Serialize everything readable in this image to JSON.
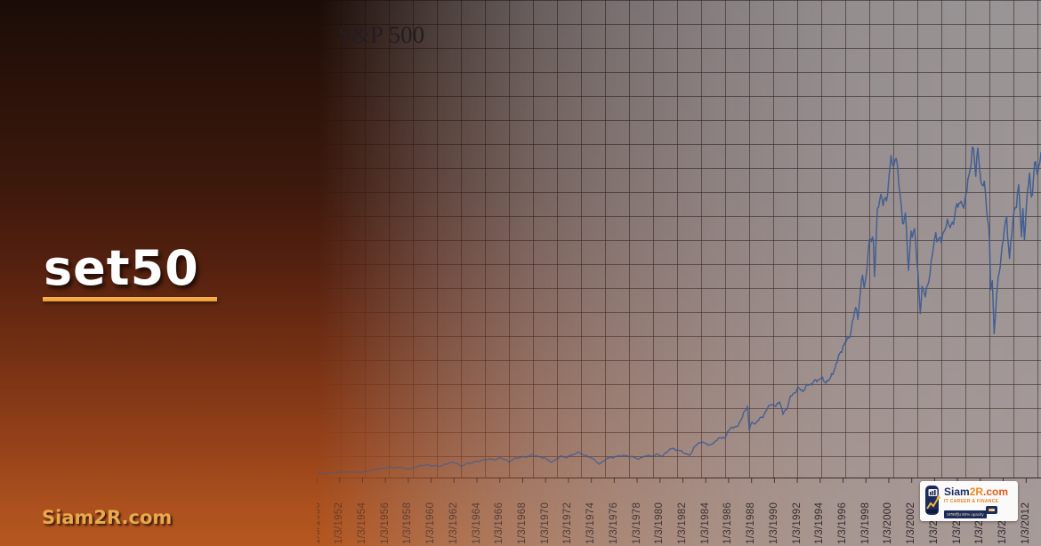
{
  "slide": {
    "title": "set50",
    "footer": "Siam2R.com"
  },
  "colors": {
    "background_top": "#1b0c07",
    "background_bottom": "#b5571f",
    "title_text": "#fdfdfd",
    "accent_underline": "#f2a23e",
    "footer_text": "#e9a94f",
    "chart_background": "#a5a0a2",
    "chart_grid": "#2a2226",
    "series_line": "#3d5c92",
    "logo_navy": "#1c2b5e",
    "logo_orange": "#ef8a1f"
  },
  "logo": {
    "brand_siam": "Siam",
    "brand_2r": "2R",
    "brand_com": ".com",
    "tagline": "IT CAREER & FINANCE",
    "strip_text": "เทรดหุ้น 80% opacity"
  },
  "chart_data": {
    "type": "line",
    "title": "S&P 500",
    "legend": "none",
    "grid": true,
    "xlabel": "",
    "ylabel": "",
    "xlim": [
      1950,
      2013.3
    ],
    "ylim": [
      0,
      2235
    ],
    "x_tick_labels": [
      "1/3/1950",
      "1/3/1952",
      "1/3/1954",
      "1/3/1956",
      "1/3/1958",
      "1/3/1960",
      "1/3/1962",
      "1/3/1964",
      "1/3/1966",
      "1/3/1968",
      "1/3/1970",
      "1/3/1972",
      "1/3/1974",
      "1/3/1976",
      "1/3/1978",
      "1/3/1980",
      "1/3/1982",
      "1/3/1984",
      "1/3/1986",
      "1/3/1988",
      "1/3/1990",
      "1/3/1992",
      "1/3/1994",
      "1/3/1996",
      "1/3/1998",
      "1/3/2000",
      "1/3/2002",
      "1/3/2004",
      "1/3/2006",
      "1/3/2008",
      "1/3/2010",
      "1/3/2012"
    ],
    "x_tick_step_years": 2,
    "series": [
      {
        "name": "S&P 500",
        "points": [
          [
            1950,
            17
          ],
          [
            1950.5,
            18
          ],
          [
            1951,
            21
          ],
          [
            1951.6,
            23
          ],
          [
            1952,
            24
          ],
          [
            1952.5,
            25
          ],
          [
            1953,
            26
          ],
          [
            1953.6,
            23
          ],
          [
            1954,
            26
          ],
          [
            1954.5,
            30
          ],
          [
            1955,
            36
          ],
          [
            1955.5,
            42
          ],
          [
            1956,
            44
          ],
          [
            1956.3,
            48
          ],
          [
            1956.8,
            45
          ],
          [
            1957.4,
            49
          ],
          [
            1957.9,
            39
          ],
          [
            1958.3,
            43
          ],
          [
            1959,
            55
          ],
          [
            1959.6,
            59
          ],
          [
            1960.2,
            55
          ],
          [
            1960.8,
            53
          ],
          [
            1961.4,
            65
          ],
          [
            1961.9,
            72
          ],
          [
            1962.3,
            65
          ],
          [
            1962.6,
            52
          ],
          [
            1963,
            63
          ],
          [
            1963.8,
            73
          ],
          [
            1964.5,
            81
          ],
          [
            1965.1,
            87
          ],
          [
            1965.6,
            84
          ],
          [
            1966.1,
            93
          ],
          [
            1966.8,
            74
          ],
          [
            1967.4,
            91
          ],
          [
            1967.9,
            95
          ],
          [
            1968.4,
            98
          ],
          [
            1968.9,
            106
          ],
          [
            1969.4,
            97
          ],
          [
            1969.9,
            92
          ],
          [
            1970.4,
            76
          ],
          [
            1970.6,
            72
          ],
          [
            1971.3,
            100
          ],
          [
            1971.8,
            94
          ],
          [
            1972.4,
            108
          ],
          [
            1972.95,
            118
          ],
          [
            1973.4,
            104
          ],
          [
            1974,
            93
          ],
          [
            1974.7,
            63
          ],
          [
            1975.4,
            90
          ],
          [
            1976,
            96
          ],
          [
            1976.7,
            104
          ],
          [
            1977.4,
            99
          ],
          [
            1978.2,
            87
          ],
          [
            1978.7,
            102
          ],
          [
            1979.3,
            101
          ],
          [
            1979.8,
            108
          ],
          [
            1980.2,
            100
          ],
          [
            1980.9,
            135
          ],
          [
            1981.3,
            132
          ],
          [
            1981.9,
            122
          ],
          [
            1982.6,
            102
          ],
          [
            1982.95,
            139
          ],
          [
            1983.5,
            167
          ],
          [
            1984.1,
            157
          ],
          [
            1984.5,
            151
          ],
          [
            1985,
            180
          ],
          [
            1985.7,
            189
          ],
          [
            1986.2,
            236
          ],
          [
            1986.7,
            234
          ],
          [
            1987.2,
            284
          ],
          [
            1987.65,
            336
          ],
          [
            1987.8,
            224
          ],
          [
            1987.95,
            250
          ],
          [
            1988.4,
            258
          ],
          [
            1989,
            288
          ],
          [
            1989.7,
            348
          ],
          [
            1990.1,
            330
          ],
          [
            1990.45,
            361
          ],
          [
            1990.75,
            295
          ],
          [
            1991.1,
            327
          ],
          [
            1991.4,
            375
          ],
          [
            1992,
            415
          ],
          [
            1992.5,
            408
          ],
          [
            1993,
            435
          ],
          [
            1993.6,
            450
          ],
          [
            1994.1,
            469
          ],
          [
            1994.3,
            446
          ],
          [
            1994.9,
            461
          ],
          [
            1995.5,
            545
          ],
          [
            1996,
            616
          ],
          [
            1996.4,
            645
          ],
          [
            1996.6,
            670
          ],
          [
            1997.1,
            790
          ],
          [
            1997.3,
            760
          ],
          [
            1997.7,
            950
          ],
          [
            1997.85,
            880
          ],
          [
            1998.3,
            1100
          ],
          [
            1998.65,
            1120
          ],
          [
            1998.75,
            957
          ],
          [
            1999,
            1230
          ],
          [
            1999.3,
            1330
          ],
          [
            1999.5,
            1300
          ],
          [
            1999.8,
            1280
          ],
          [
            2000.2,
            1527
          ],
          [
            2000.4,
            1420
          ],
          [
            2000.65,
            1520
          ],
          [
            2001,
            1320
          ],
          [
            2001.2,
            1170
          ],
          [
            2001.45,
            1255
          ],
          [
            2001.72,
            966
          ],
          [
            2001.95,
            1140
          ],
          [
            2002.25,
            1170
          ],
          [
            2002.75,
            777
          ],
          [
            2002.9,
            900
          ],
          [
            2003.2,
            841
          ],
          [
            2003.7,
            1000
          ],
          [
            2004.1,
            1140
          ],
          [
            2004.6,
            1100
          ],
          [
            2005,
            1200
          ],
          [
            2005.35,
            1165
          ],
          [
            2005.95,
            1260
          ],
          [
            2006.4,
            1310
          ],
          [
            2006.55,
            1240
          ],
          [
            2007,
            1430
          ],
          [
            2007.4,
            1530
          ],
          [
            2007.6,
            1430
          ],
          [
            2007.78,
            1565
          ],
          [
            2008.05,
            1350
          ],
          [
            2008.35,
            1400
          ],
          [
            2008.55,
            1260
          ],
          [
            2008.8,
            1100
          ],
          [
            2008.9,
            880
          ],
          [
            2009.05,
            930
          ],
          [
            2009.2,
            677
          ],
          [
            2009.55,
            930
          ],
          [
            2010,
            1115
          ],
          [
            2010.3,
            1217
          ],
          [
            2010.55,
            1030
          ],
          [
            2010.95,
            1240
          ],
          [
            2011.35,
            1360
          ],
          [
            2011.6,
            1120
          ],
          [
            2011.72,
            1260
          ],
          [
            2011.85,
            1130
          ],
          [
            2012.1,
            1310
          ],
          [
            2012.3,
            1420
          ],
          [
            2012.45,
            1310
          ],
          [
            2012.75,
            1460
          ],
          [
            2013,
            1420
          ],
          [
            2013.3,
            1520
          ]
        ]
      }
    ]
  }
}
